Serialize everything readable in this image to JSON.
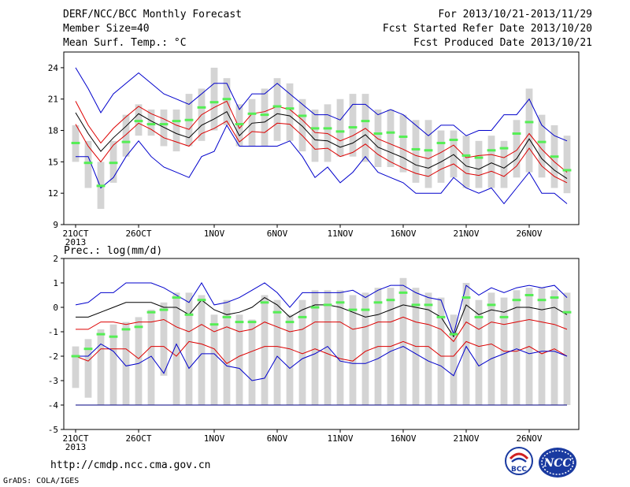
{
  "header": {
    "title": "DERF/NCC/BCC Monthly Forecast",
    "member_size": "Member Size=40",
    "variable": "Mean Surf. Temp.: °C",
    "period": "For 2013/10/21-2013/11/29",
    "fcst_started": "Fcst Started Refer Date 2013/10/20",
    "fcst_produced": "Fcst Produced Date 2013/10/21"
  },
  "footer": {
    "url": "http://cmdp.ncc.cma.gov.cn",
    "credit": "GrADS: COLA/IGES",
    "logo_left_text": "BCC",
    "logo_right_text": "NCC"
  },
  "colors": {
    "box": "#d4d4d4",
    "median": "#55ee55",
    "mean": "#000000",
    "percentile_line": "#dd0000",
    "extreme_line": "#0000cc",
    "baseline": "#000080"
  },
  "chart_data": [
    {
      "type": "line",
      "title": "",
      "ylabel": "",
      "ylim": [
        9,
        25.5
      ],
      "y_ticks": [
        9,
        12,
        15,
        18,
        21,
        24
      ],
      "x_ticks": [
        {
          "day": 0,
          "label": "21OCT",
          "sublabel": "2013"
        },
        {
          "day": 5,
          "label": "26OCT"
        },
        {
          "day": 11,
          "label": "1NOV"
        },
        {
          "day": 16,
          "label": "6NOV"
        },
        {
          "day": 21,
          "label": "11NOV"
        },
        {
          "day": 26,
          "label": "16NOV"
        },
        {
          "day": 31,
          "label": "21NOV"
        },
        {
          "day": 36,
          "label": "26NOV"
        }
      ],
      "x": [
        "10/21",
        "10/22",
        "10/23",
        "10/24",
        "10/25",
        "10/26",
        "10/27",
        "10/28",
        "10/29",
        "10/30",
        "10/31",
        "11/01",
        "11/02",
        "11/03",
        "11/04",
        "11/05",
        "11/06",
        "11/07",
        "11/08",
        "11/09",
        "11/10",
        "11/11",
        "11/12",
        "11/13",
        "11/14",
        "11/15",
        "11/16",
        "11/17",
        "11/18",
        "11/19",
        "11/20",
        "11/21",
        "11/22",
        "11/23",
        "11/24",
        "11/25",
        "11/26",
        "11/27",
        "11/28",
        "11/29"
      ],
      "boxes": {
        "low": [
          15.0,
          12.5,
          10.5,
          13.0,
          15.5,
          17.5,
          17.5,
          16.5,
          16.0,
          16.5,
          17.0,
          18.0,
          18.5,
          16.5,
          16.5,
          16.5,
          17.0,
          17.0,
          16.0,
          15.0,
          15.0,
          15.5,
          15.5,
          15.0,
          14.5,
          14.5,
          14.0,
          13.0,
          12.5,
          13.0,
          13.5,
          12.5,
          12.5,
          12.5,
          12.5,
          13.5,
          14.0,
          13.5,
          12.5,
          12.0
        ],
        "high": [
          18.5,
          17.0,
          15.0,
          17.0,
          19.5,
          20.5,
          20.0,
          20.0,
          20.0,
          21.5,
          22.0,
          24.0,
          23.0,
          20.5,
          21.0,
          22.0,
          23.0,
          22.5,
          21.0,
          20.0,
          20.5,
          21.0,
          21.5,
          21.5,
          20.0,
          20.0,
          19.5,
          19.0,
          19.0,
          18.0,
          18.0,
          17.5,
          17.0,
          17.5,
          17.0,
          19.0,
          22.0,
          19.5,
          18.5,
          17.5
        ]
      },
      "series": [
        {
          "role": "median",
          "values": [
            16.8,
            14.9,
            12.7,
            14.9,
            16.9,
            18.9,
            18.6,
            18.6,
            18.9,
            19.0,
            20.2,
            20.7,
            21.0,
            18.6,
            19.6,
            19.5,
            20.3,
            20.1,
            19.4,
            18.2,
            18.2,
            17.9,
            18.3,
            18.9,
            17.7,
            17.8,
            17.4,
            16.2,
            16.1,
            16.8,
            17.1,
            15.6,
            15.4,
            16.1,
            16.3,
            17.7,
            18.8,
            16.9,
            15.5,
            14.2
          ]
        },
        {
          "role": "max",
          "values": [
            24.0,
            22.0,
            19.7,
            21.5,
            22.5,
            23.5,
            22.5,
            21.5,
            21.0,
            20.5,
            21.5,
            22.5,
            22.5,
            20.0,
            21.5,
            21.5,
            22.5,
            21.5,
            20.5,
            19.5,
            19.5,
            19.0,
            20.5,
            20.5,
            19.5,
            20.0,
            19.5,
            18.5,
            17.5,
            18.5,
            18.5,
            17.5,
            18.0,
            18.0,
            19.5,
            19.5,
            21.0,
            18.5,
            17.5,
            17.0
          ]
        },
        {
          "role": "upper",
          "values": [
            20.8,
            18.5,
            16.8,
            18.2,
            19.3,
            20.3,
            19.6,
            19.1,
            18.5,
            18.1,
            19.5,
            20.2,
            20.8,
            18.2,
            19.6,
            19.8,
            20.3,
            20.0,
            19.0,
            17.8,
            17.7,
            17.0,
            17.5,
            18.2,
            17.2,
            16.7,
            16.2,
            15.6,
            15.3,
            15.9,
            16.6,
            15.4,
            15.6,
            15.7,
            15.4,
            16.1,
            17.7,
            16.2,
            15.0,
            14.0
          ]
        },
        {
          "role": "mean",
          "values": [
            19.7,
            17.7,
            16.0,
            17.3,
            18.4,
            19.6,
            18.9,
            18.3,
            17.7,
            17.3,
            18.5,
            19.1,
            19.8,
            17.5,
            18.7,
            18.8,
            19.6,
            19.4,
            18.4,
            17.1,
            17.0,
            16.4,
            16.8,
            17.6,
            16.4,
            15.9,
            15.4,
            14.7,
            14.4,
            15.0,
            15.7,
            14.6,
            14.3,
            14.9,
            14.4,
            15.3,
            17.2,
            15.3,
            14.2,
            13.4
          ]
        },
        {
          "role": "lower",
          "values": [
            18.6,
            16.5,
            15.0,
            16.6,
            17.6,
            18.7,
            18.1,
            17.3,
            16.9,
            16.5,
            17.7,
            18.2,
            18.9,
            16.9,
            17.9,
            17.8,
            18.7,
            18.6,
            17.5,
            16.2,
            16.3,
            15.5,
            15.9,
            16.7,
            15.7,
            15.0,
            14.4,
            13.9,
            13.6,
            14.3,
            14.8,
            13.9,
            13.7,
            14.1,
            13.6,
            14.6,
            16.3,
            14.6,
            13.6,
            13.0
          ]
        },
        {
          "role": "min",
          "values": [
            15.5,
            15.5,
            12.5,
            13.5,
            15.5,
            17.0,
            15.5,
            14.5,
            14.0,
            13.5,
            15.5,
            16.0,
            18.5,
            16.5,
            16.5,
            16.5,
            16.5,
            17.0,
            15.5,
            13.5,
            14.5,
            13.0,
            14.0,
            15.5,
            14.0,
            13.5,
            13.0,
            12.0,
            12.0,
            12.0,
            13.5,
            12.5,
            12.0,
            12.5,
            11.0,
            12.5,
            14.0,
            12.0,
            12.0,
            11.0
          ]
        }
      ]
    },
    {
      "type": "line",
      "title": "Prec.: log(mm/d)",
      "ylabel": "",
      "ylim": [
        -5,
        2
      ],
      "y_ticks": [
        -5,
        -4,
        -3,
        -2,
        -1,
        0,
        1,
        2
      ],
      "baseline": -4,
      "x_ticks": [
        {
          "day": 0,
          "label": "21OCT",
          "sublabel": "2013"
        },
        {
          "day": 5,
          "label": "26OCT"
        },
        {
          "day": 11,
          "label": "1NOV"
        },
        {
          "day": 16,
          "label": "6NOV"
        },
        {
          "day": 21,
          "label": "11NOV"
        },
        {
          "day": 26,
          "label": "16NOV"
        },
        {
          "day": 31,
          "label": "21NOV"
        },
        {
          "day": 36,
          "label": "26NOV"
        }
      ],
      "x": [
        "10/21",
        "10/22",
        "10/23",
        "10/24",
        "10/25",
        "10/26",
        "10/27",
        "10/28",
        "10/29",
        "10/30",
        "10/31",
        "11/01",
        "11/02",
        "11/03",
        "11/04",
        "11/05",
        "11/06",
        "11/07",
        "11/08",
        "11/09",
        "11/10",
        "11/11",
        "11/12",
        "11/13",
        "11/14",
        "11/15",
        "11/16",
        "11/17",
        "11/18",
        "11/19",
        "11/20",
        "11/21",
        "11/22",
        "11/23",
        "11/24",
        "11/25",
        "11/26",
        "11/27",
        "11/28",
        "11/29"
      ],
      "boxes": {
        "low": [
          -3.3,
          -3.7,
          -4.0,
          -4.0,
          -4.0,
          -4.0,
          -4.0,
          -2.8,
          -4.0,
          -4.0,
          -4.0,
          -4.0,
          -4.0,
          -4.0,
          -4.0,
          -4.0,
          -4.0,
          -4.0,
          -4.0,
          -4.0,
          -4.0,
          -4.0,
          -4.0,
          -4.0,
          -4.0,
          -4.0,
          -4.0,
          -4.0,
          -4.0,
          -4.0,
          -4.0,
          -4.0,
          -4.0,
          -4.0,
          -4.0,
          -4.0,
          -4.0,
          -4.0,
          -4.0,
          -4.0
        ],
        "high": [
          -1.6,
          -1.3,
          -0.9,
          -0.7,
          -0.6,
          -0.4,
          -0.1,
          0.2,
          0.6,
          0.6,
          0.5,
          -0.3,
          0.3,
          -0.3,
          -0.5,
          0.5,
          0.3,
          -0.3,
          0.3,
          0.7,
          0.7,
          0.7,
          0.5,
          0.6,
          0.8,
          0.8,
          1.2,
          0.8,
          0.6,
          0.4,
          -0.3,
          1.0,
          0.3,
          0.6,
          0.4,
          0.7,
          0.8,
          0.8,
          0.7,
          0.6
        ]
      },
      "series": [
        {
          "role": "median",
          "values": [
            -2.0,
            -1.7,
            -1.1,
            -1.2,
            -0.9,
            -0.8,
            -0.2,
            -0.1,
            0.4,
            -0.3,
            0.3,
            -0.7,
            -0.4,
            -0.6,
            -0.6,
            0.2,
            -0.2,
            -0.6,
            -0.4,
            0.0,
            0.1,
            0.2,
            -0.1,
            -0.1,
            0.2,
            0.3,
            0.6,
            0.1,
            0.1,
            -0.4,
            -1.1,
            0.4,
            -0.4,
            0.1,
            -0.4,
            0.3,
            0.5,
            0.3,
            0.4,
            -0.2
          ]
        },
        {
          "role": "max",
          "values": [
            0.1,
            0.2,
            0.6,
            0.6,
            1.0,
            1.0,
            1.0,
            0.8,
            0.5,
            0.2,
            1.0,
            0.1,
            0.2,
            0.4,
            0.7,
            1.0,
            0.6,
            0.0,
            0.6,
            0.6,
            0.6,
            0.6,
            0.7,
            0.4,
            0.7,
            0.9,
            0.9,
            0.6,
            0.4,
            0.3,
            -1.1,
            0.9,
            0.5,
            0.8,
            0.6,
            0.8,
            0.9,
            0.8,
            0.9,
            0.4
          ]
        },
        {
          "role": "mean",
          "values": [
            -0.4,
            -0.4,
            -0.2,
            0.0,
            0.2,
            0.2,
            0.2,
            0.0,
            0.0,
            -0.3,
            0.3,
            -0.1,
            -0.3,
            -0.2,
            0.0,
            0.4,
            0.1,
            -0.4,
            -0.1,
            0.1,
            0.1,
            0.0,
            -0.2,
            -0.4,
            -0.3,
            -0.1,
            0.1,
            0.0,
            -0.1,
            -0.4,
            -1.2,
            0.1,
            -0.3,
            -0.1,
            -0.2,
            0.0,
            0.0,
            -0.1,
            0.0,
            -0.3
          ]
        },
        {
          "role": "upper",
          "values": [
            -0.9,
            -0.9,
            -0.6,
            -0.6,
            -0.7,
            -0.6,
            -0.6,
            -0.5,
            -0.8,
            -1.0,
            -0.7,
            -1.0,
            -0.8,
            -1.0,
            -0.9,
            -0.6,
            -0.8,
            -1.0,
            -0.9,
            -0.6,
            -0.6,
            -0.6,
            -0.9,
            -0.8,
            -0.6,
            -0.6,
            -0.4,
            -0.6,
            -0.7,
            -0.9,
            -1.4,
            -0.6,
            -0.9,
            -0.6,
            -0.7,
            -0.6,
            -0.5,
            -0.6,
            -0.7,
            -0.9
          ]
        },
        {
          "role": "lower",
          "values": [
            -2.0,
            -2.2,
            -1.7,
            -1.7,
            -1.7,
            -2.1,
            -1.6,
            -1.6,
            -2.0,
            -1.4,
            -1.5,
            -1.7,
            -2.3,
            -2.0,
            -1.8,
            -1.6,
            -1.6,
            -1.7,
            -1.9,
            -1.7,
            -1.9,
            -2.1,
            -2.2,
            -1.8,
            -1.6,
            -1.6,
            -1.4,
            -1.6,
            -1.6,
            -2.0,
            -2.0,
            -1.4,
            -1.6,
            -1.5,
            -1.8,
            -1.8,
            -1.6,
            -1.9,
            -1.7,
            -2.0
          ]
        },
        {
          "role": "min",
          "values": [
            -2.0,
            -2.0,
            -1.5,
            -1.8,
            -2.4,
            -2.3,
            -2.0,
            -2.7,
            -1.5,
            -2.5,
            -1.9,
            -1.9,
            -2.4,
            -2.5,
            -3.0,
            -2.9,
            -2.0,
            -2.5,
            -2.1,
            -1.9,
            -1.6,
            -2.2,
            -2.3,
            -2.3,
            -2.1,
            -1.8,
            -1.6,
            -1.9,
            -2.2,
            -2.4,
            -2.8,
            -1.6,
            -2.4,
            -2.1,
            -1.9,
            -1.7,
            -1.9,
            -1.8,
            -1.8,
            -2.0
          ]
        }
      ]
    }
  ]
}
